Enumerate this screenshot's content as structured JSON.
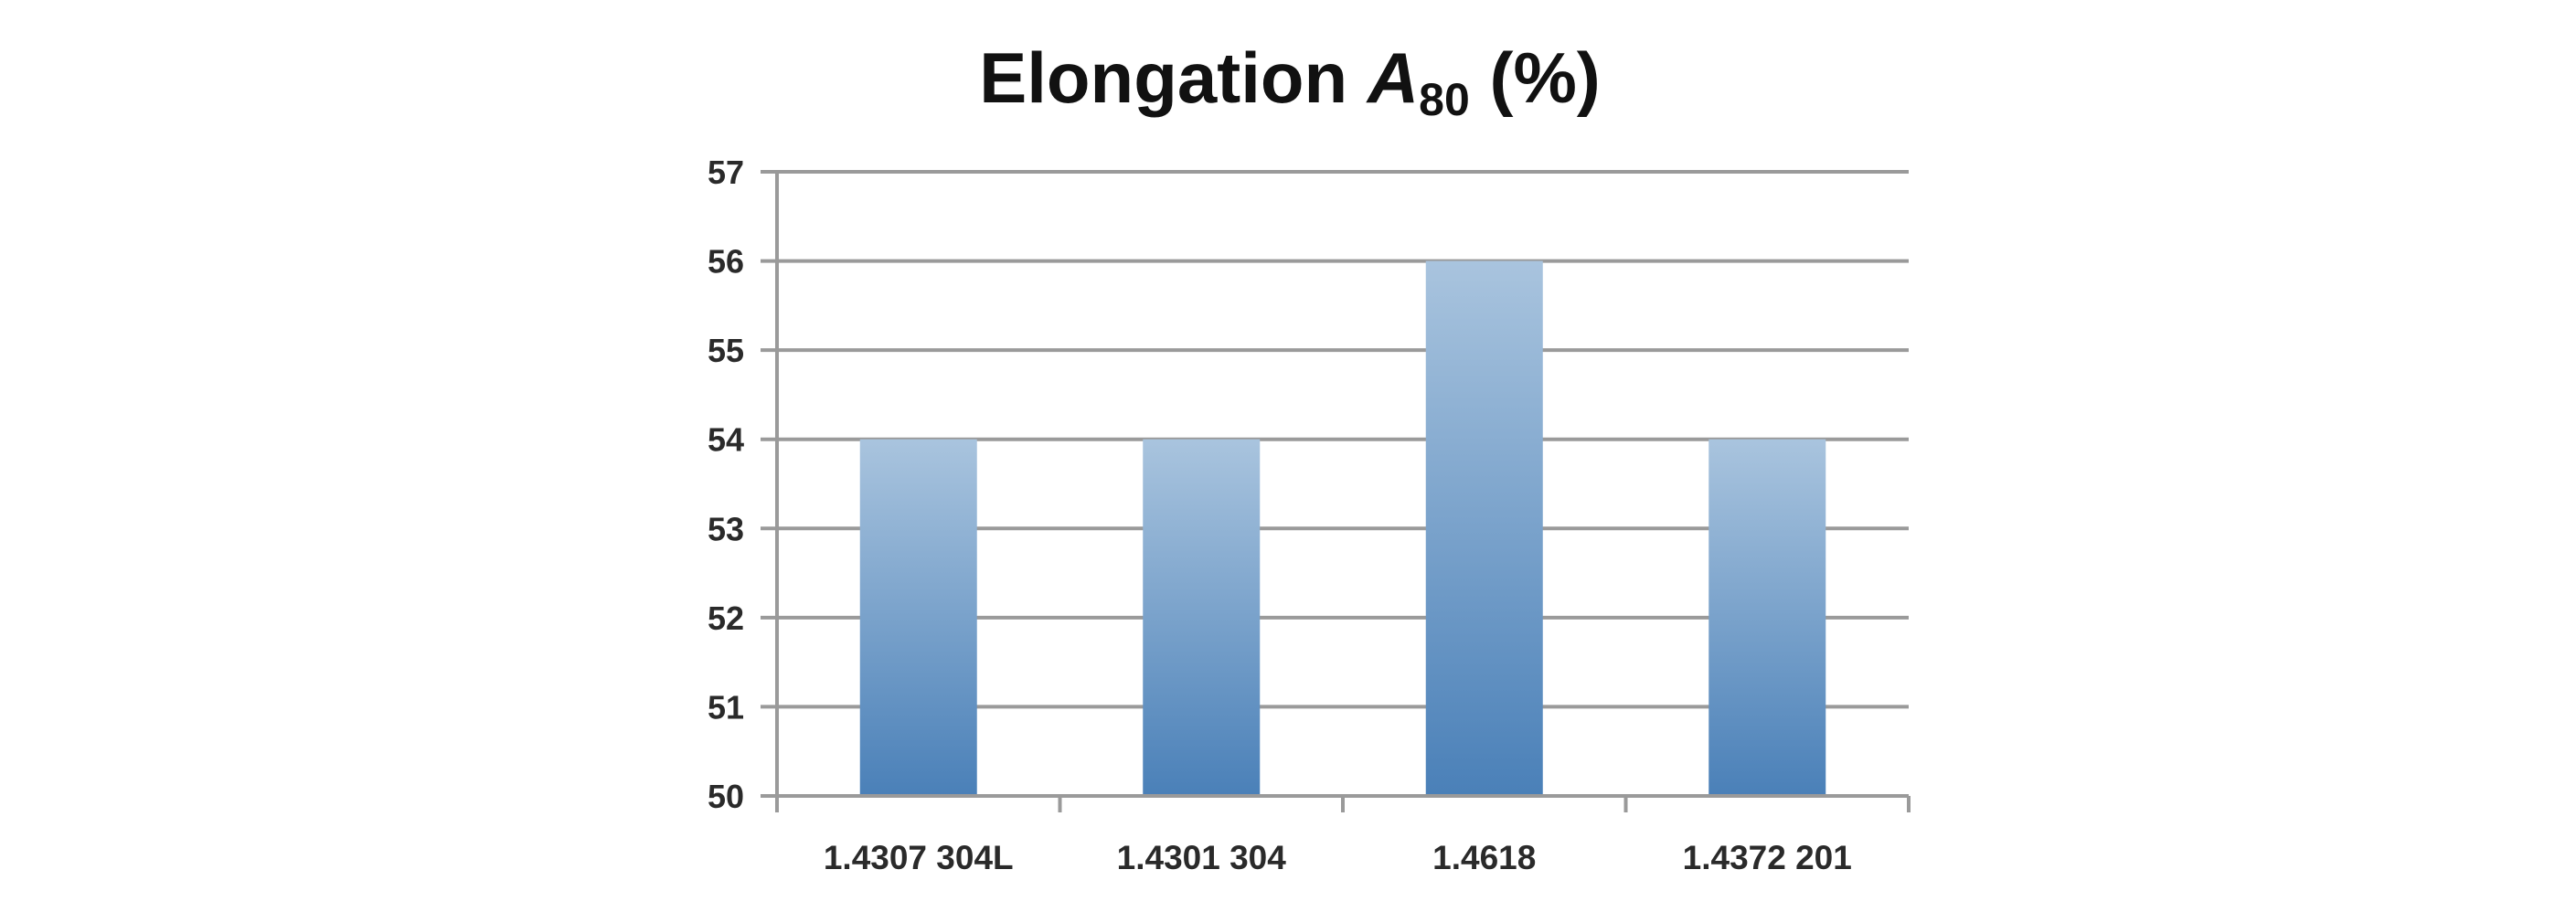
{
  "chart_data": {
    "type": "bar",
    "title": {
      "main": "Elongation ",
      "symbol": "A",
      "subscript": "80",
      "unit": " (%)"
    },
    "xlabel": "",
    "ylabel": "",
    "categories": [
      "1.4307 304L",
      "1.4301 304",
      "1.4618",
      "1.4372 201"
    ],
    "values": [
      54,
      54,
      56,
      54
    ],
    "ylim": [
      50,
      57
    ],
    "yticks": [
      50,
      51,
      52,
      53,
      54,
      55,
      56,
      57
    ],
    "grid": true,
    "legend": "none",
    "colors": {
      "bar_top": "#a9c4de",
      "bar_bottom": "#4a80b8"
    }
  }
}
